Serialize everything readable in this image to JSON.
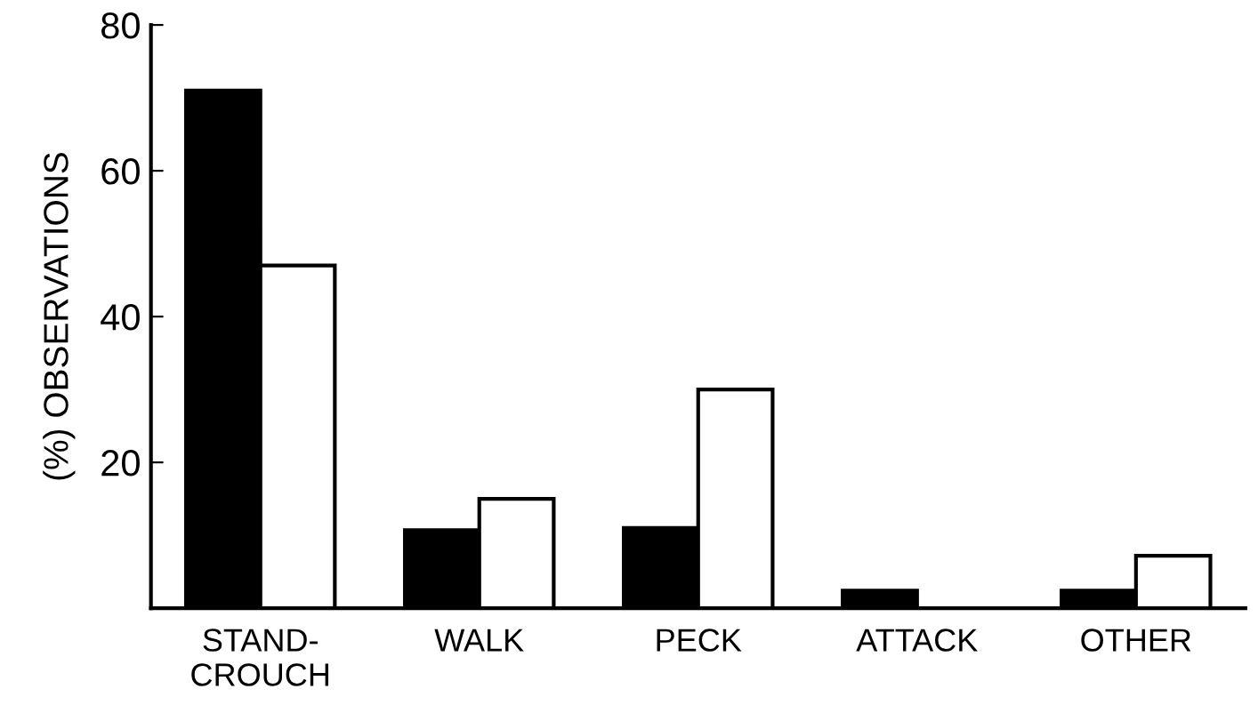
{
  "chart_data": {
    "type": "bar",
    "ylabel": "(%) OBSERVATIONS",
    "categories": [
      "STAND-\nCROUCH",
      "WALK",
      "PECK",
      "ATTACK",
      "OTHER"
    ],
    "series": [
      {
        "color": "#000000",
        "values": [
          71,
          10.7,
          11,
          2.4,
          2.4
        ]
      },
      {
        "color": "#ffffff",
        "values": [
          47,
          15,
          30,
          0,
          7.2
        ]
      }
    ],
    "ylim": [
      0,
      80
    ],
    "yticks": [
      20,
      40,
      60,
      80
    ],
    "grid": false,
    "legend": false
  }
}
